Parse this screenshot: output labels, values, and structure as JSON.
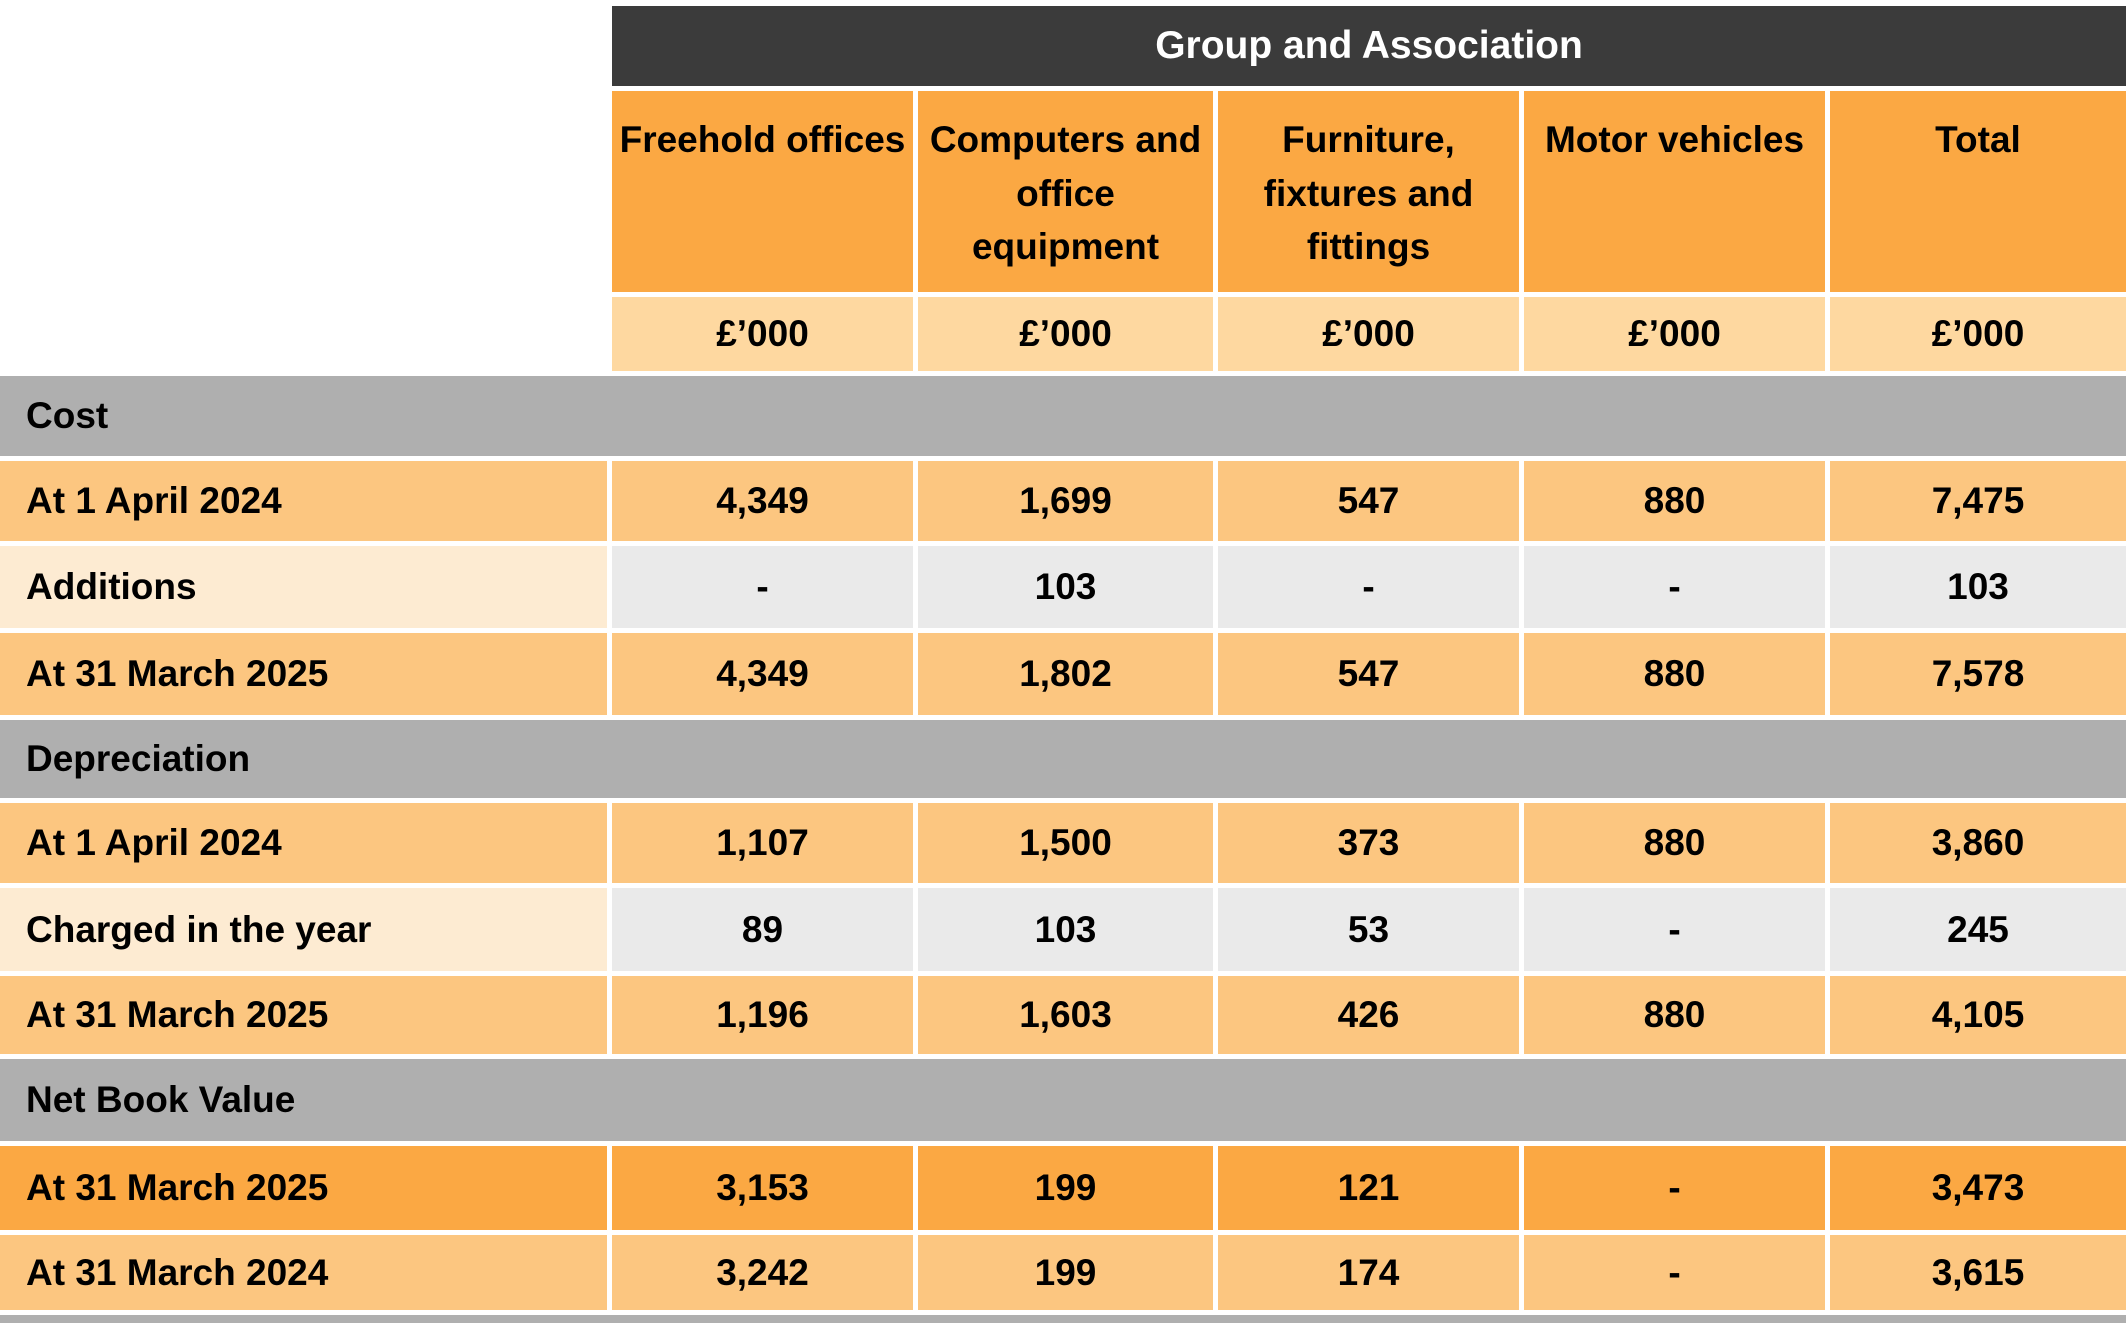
{
  "table": {
    "group_header": "Group and Association",
    "unit_label": "£’000",
    "columns": [
      "Freehold offices",
      "Computers and office equipment",
      "Furniture, fixtures and fittings",
      "Motor vehicles",
      "Total"
    ],
    "sections": [
      {
        "title": "Cost",
        "rows": [
          {
            "label": "At 1 April 2024",
            "style": "orange",
            "values": [
              "4,349",
              "1,699",
              "547",
              "880",
              "7,475"
            ]
          },
          {
            "label": "Additions",
            "style": "gray",
            "values": [
              "-",
              "103",
              "-",
              "-",
              "103"
            ]
          },
          {
            "label": "At 31 March 2025",
            "style": "orange",
            "values": [
              "4,349",
              "1,802",
              "547",
              "880",
              "7,578"
            ]
          }
        ]
      },
      {
        "title": "Depreciation",
        "rows": [
          {
            "label": "At 1 April 2024",
            "style": "orange",
            "values": [
              "1,107",
              "1,500",
              "373",
              "880",
              "3,860"
            ]
          },
          {
            "label": "Charged in the year",
            "style": "gray",
            "values": [
              "89",
              "103",
              "53",
              "-",
              "245"
            ]
          },
          {
            "label": "At 31 March 2025",
            "style": "orange",
            "values": [
              "1,196",
              "1,603",
              "426",
              "880",
              "4,105"
            ]
          }
        ]
      },
      {
        "title": "Net Book Value",
        "rows": [
          {
            "label": "At 31 March 2025",
            "style": "dark-orange",
            "values": [
              "3,153",
              "199",
              "121",
              "-",
              "3,473"
            ]
          },
          {
            "label": "At 31 March 2024",
            "style": "orange",
            "values": [
              "3,242",
              "199",
              "174",
              "-",
              "3,615"
            ]
          }
        ]
      }
    ],
    "colors": {
      "header_bar": "#3B3B3B",
      "header_orange": "#FBA843",
      "unit_row_orange": "#FED8A0",
      "section_band_gray": "#AFAFAF",
      "data_row_orange": "#FCC680",
      "muted_label_cream": "#FDEBD2",
      "muted_cell_gray": "#EAEAEA",
      "nbv_current_row_orange": "#FBA843"
    }
  }
}
